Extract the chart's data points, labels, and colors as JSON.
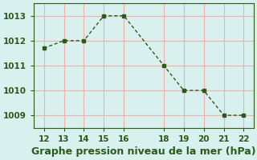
{
  "x": [
    12,
    13,
    14,
    15,
    16,
    18,
    19,
    20,
    21,
    22
  ],
  "y": [
    1011.7,
    1012.0,
    1012.0,
    1013.0,
    1013.0,
    1011.0,
    1010.0,
    1010.0,
    1009.0,
    1009.0
  ],
  "line_color": "#2d5a1b",
  "marker": "s",
  "marker_size": 3,
  "bg_color": "#d8f0ee",
  "grid_color": "#f0b0b0",
  "xlabel": "Graphe pression niveau de la mer (hPa)",
  "xlabel_color": "#2d5a1b",
  "xlabel_fontsize": 9,
  "xticks": [
    12,
    13,
    14,
    15,
    16,
    18,
    19,
    20,
    21,
    22
  ],
  "yticks": [
    1009,
    1010,
    1011,
    1012,
    1013
  ],
  "ylim": [
    1008.5,
    1013.5
  ],
  "xlim": [
    11.5,
    22.5
  ],
  "tick_color": "#2d5a1b",
  "tick_fontsize": 7.5
}
